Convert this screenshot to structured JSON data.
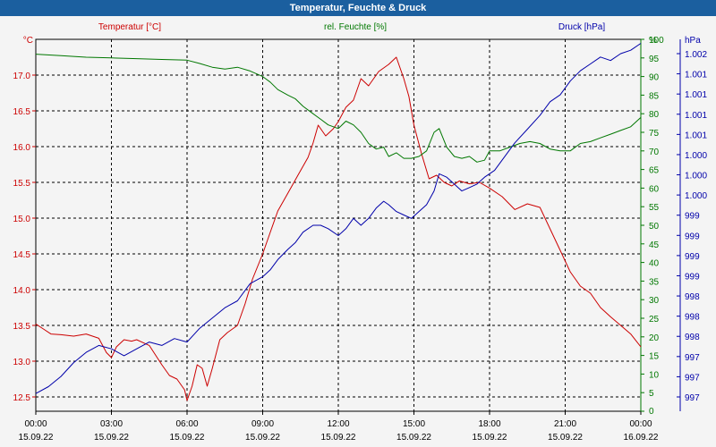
{
  "title": "Temperatur, Feuchte & Druck",
  "colors": {
    "temperature": "#cc0000",
    "humidity": "#007700",
    "pressure": "#0000aa",
    "header": "#1b5f9f"
  },
  "chart_data": {
    "type": "line",
    "title": "Temperatur, Feuchte & Druck",
    "x_labels": [
      {
        "time": "00:00",
        "date": "15.09.22"
      },
      {
        "time": "03:00",
        "date": "15.09.22"
      },
      {
        "time": "06:00",
        "date": "15.09.22"
      },
      {
        "time": "09:00",
        "date": "15.09.22"
      },
      {
        "time": "12:00",
        "date": "15.09.22"
      },
      {
        "time": "15:00",
        "date": "15.09.22"
      },
      {
        "time": "18:00",
        "date": "15.09.22"
      },
      {
        "time": "21:00",
        "date": "15.09.22"
      },
      {
        "time": "00:00",
        "date": "16.09.22"
      }
    ],
    "x_range_hours": [
      0,
      24
    ],
    "grid": true,
    "axes": {
      "temperature": {
        "unit": "°C",
        "min": 12.3,
        "max": 17.5,
        "ticks": [
          "12.5",
          "13.0",
          "13.5",
          "14.0",
          "14.5",
          "15.0",
          "15.5",
          "16.0",
          "16.5",
          "17.0"
        ],
        "tick_values": [
          12.5,
          13.0,
          13.5,
          14.0,
          14.5,
          15.0,
          15.5,
          16.0,
          16.5,
          17.0
        ]
      },
      "humidity": {
        "unit": "%",
        "min": 0,
        "max": 100,
        "ticks": [
          "0",
          "5",
          "10",
          "15",
          "20",
          "25",
          "30",
          "35",
          "40",
          "45",
          "50",
          "55",
          "60",
          "65",
          "70",
          "75",
          "80",
          "85",
          "90",
          "95",
          "100"
        ],
        "tick_values": [
          0,
          5,
          10,
          15,
          20,
          25,
          30,
          35,
          40,
          45,
          50,
          55,
          60,
          65,
          70,
          75,
          80,
          85,
          90,
          95,
          100
        ]
      },
      "pressure": {
        "unit": "hPa",
        "ticks": [
          "997",
          "997",
          "997",
          "998",
          "998",
          "998",
          "999",
          "999",
          "999",
          "999",
          "1.000",
          "1.000",
          "1.000",
          "1.001",
          "1.001",
          "1.001",
          "1.001",
          "1.002"
        ]
      }
    },
    "series": [
      {
        "name": "Temperatur [°C]",
        "axis": "temperature",
        "color": "#cc0000",
        "x": [
          0,
          0.3,
          0.6,
          1,
          1.5,
          2,
          2.5,
          2.8,
          3,
          3.2,
          3.5,
          3.8,
          4,
          4.5,
          5,
          5.3,
          5.6,
          5.9,
          6,
          6.2,
          6.4,
          6.6,
          6.8,
          7,
          7.3,
          7.6,
          8,
          8.3,
          8.6,
          9,
          9.3,
          9.6,
          10,
          10.4,
          10.8,
          11,
          11.2,
          11.5,
          11.8,
          12,
          12.3,
          12.6,
          12.9,
          13.2,
          13.6,
          14,
          14.3,
          14.6,
          14.8,
          15,
          15.3,
          15.6,
          15.9,
          16.2,
          16.5,
          16.8,
          17.2,
          17.6,
          18,
          18.5,
          19,
          19.5,
          20,
          20.4,
          20.8,
          21.2,
          21.6,
          22,
          22.4,
          22.8,
          23.2,
          23.6,
          24
        ],
        "values": [
          13.52,
          13.45,
          13.38,
          13.37,
          13.35,
          13.38,
          13.32,
          13.12,
          13.05,
          13.2,
          13.3,
          13.28,
          13.3,
          13.22,
          12.95,
          12.8,
          12.75,
          12.6,
          12.45,
          12.65,
          12.95,
          12.9,
          12.65,
          12.9,
          13.3,
          13.4,
          13.5,
          13.8,
          14.15,
          14.5,
          14.8,
          15.1,
          15.35,
          15.6,
          15.85,
          16.05,
          16.3,
          16.15,
          16.25,
          16.35,
          16.55,
          16.65,
          16.95,
          16.85,
          17.05,
          17.15,
          17.25,
          16.95,
          16.7,
          16.3,
          15.9,
          15.55,
          15.6,
          15.5,
          15.45,
          15.52,
          15.48,
          15.5,
          15.42,
          15.3,
          15.12,
          15.2,
          15.15,
          14.85,
          14.55,
          14.25,
          14.05,
          13.95,
          13.75,
          13.62,
          13.5,
          13.38,
          13.2
        ]
      },
      {
        "name": "rel. Feuchte [%]",
        "axis": "humidity",
        "color": "#007700",
        "x": [
          0,
          1,
          2,
          3,
          4,
          5,
          6,
          6.5,
          7,
          7.5,
          8,
          8.5,
          9,
          9.3,
          9.6,
          10,
          10.3,
          10.6,
          11,
          11.3,
          11.6,
          12,
          12.3,
          12.6,
          12.9,
          13.2,
          13.5,
          13.8,
          14,
          14.3,
          14.6,
          14.9,
          15.2,
          15.5,
          15.8,
          16,
          16.3,
          16.6,
          16.9,
          17.2,
          17.5,
          17.8,
          18,
          18.4,
          18.8,
          19.2,
          19.6,
          20,
          20.4,
          20.8,
          21.2,
          21.6,
          22,
          22.4,
          22.8,
          23.2,
          23.6,
          24
        ],
        "values": [
          96,
          95.6,
          95.2,
          95,
          94.8,
          94.6,
          94.4,
          93.5,
          92.5,
          92,
          92.5,
          91.5,
          90,
          88.5,
          86.5,
          85,
          84,
          82,
          80,
          78.5,
          77,
          76,
          78,
          77,
          75,
          72,
          70.5,
          71,
          68.5,
          69.5,
          68,
          68,
          68.5,
          70,
          75,
          76,
          71,
          68.5,
          68,
          68.5,
          67,
          67.5,
          70,
          70,
          71,
          72,
          72.5,
          72,
          70.5,
          70,
          70,
          72,
          72.5,
          73.5,
          74.5,
          75.5,
          76.5,
          79
        ]
      },
      {
        "name": "Druck [hPa]",
        "axis": "pressure",
        "color": "#0000aa",
        "unit_scale": "relative (0 = 997, 1 = 1.002)",
        "x": [
          0,
          0.5,
          1,
          1.5,
          2,
          2.5,
          3,
          3.5,
          4,
          4.5,
          5,
          5.5,
          6,
          6.5,
          7,
          7.5,
          8,
          8.5,
          9,
          9.3,
          9.6,
          10,
          10.3,
          10.6,
          11,
          11.3,
          11.6,
          12,
          12.3,
          12.6,
          12.9,
          13.2,
          13.5,
          13.8,
          14,
          14.3,
          14.6,
          14.9,
          15.2,
          15.5,
          15.8,
          16,
          16.3,
          16.6,
          16.9,
          17.2,
          17.5,
          17.8,
          18.2,
          18.6,
          19,
          19.5,
          20,
          20.4,
          20.8,
          21.2,
          21.6,
          22,
          22.4,
          22.8,
          23.2,
          23.6,
          24
        ],
        "values": [
          0.01,
          0.03,
          0.06,
          0.1,
          0.13,
          0.15,
          0.14,
          0.12,
          0.14,
          0.16,
          0.15,
          0.17,
          0.16,
          0.2,
          0.23,
          0.26,
          0.28,
          0.33,
          0.35,
          0.37,
          0.4,
          0.43,
          0.45,
          0.48,
          0.5,
          0.5,
          0.49,
          0.47,
          0.49,
          0.52,
          0.5,
          0.52,
          0.55,
          0.57,
          0.56,
          0.54,
          0.53,
          0.52,
          0.54,
          0.56,
          0.6,
          0.65,
          0.64,
          0.62,
          0.6,
          0.61,
          0.62,
          0.64,
          0.66,
          0.7,
          0.74,
          0.78,
          0.82,
          0.86,
          0.88,
          0.92,
          0.95,
          0.97,
          0.99,
          0.98,
          1.0,
          1.01,
          1.03
        ]
      }
    ],
    "legend": [
      "Temperatur [°C]",
      "rel. Feuchte [%]",
      "Druck [hPa]"
    ],
    "legend_placement": "top"
  }
}
